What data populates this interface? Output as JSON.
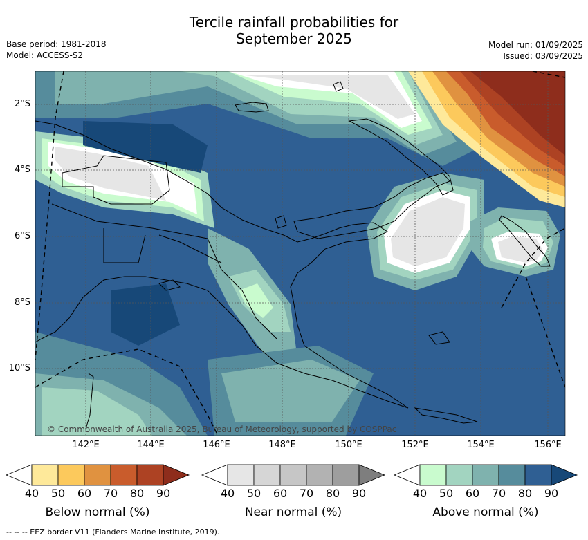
{
  "header": {
    "title_line1": "Tercile rainfall probabilities for",
    "title_line2": "September 2025",
    "base_period": "Base period: 1981-2018",
    "model": "Model: ACCESS-S2",
    "model_run": "Model run: 01/09/2025",
    "issued": "Issued: 03/09/2025"
  },
  "map": {
    "lat_labels": [
      "2°S",
      "4°S",
      "6°S",
      "8°S",
      "10°S"
    ],
    "lon_labels": [
      "142°E",
      "144°E",
      "146°E",
      "148°E",
      "150°E",
      "152°E",
      "154°E",
      "156°E"
    ],
    "copyright": "© Commonwealth of Australia 2025, Bureau of Meteorology, supported by COSPPac",
    "colors": {
      "land_outline": "#000000",
      "gridline": "#555555"
    }
  },
  "colorbars": [
    {
      "title": "Below normal (%)",
      "ticks": [
        "40",
        "50",
        "60",
        "70",
        "80",
        "90"
      ],
      "colors": [
        "#ffffff",
        "#fee99a",
        "#fcc95c",
        "#e09240",
        "#c95c2c",
        "#ad4223",
        "#8e2d1c"
      ]
    },
    {
      "title": "Near normal (%)",
      "ticks": [
        "40",
        "50",
        "60",
        "70",
        "80",
        "90"
      ],
      "colors": [
        "#ffffff",
        "#e6e6e6",
        "#d6d6d6",
        "#c6c6c6",
        "#b2b2b2",
        "#9e9e9e",
        "#7e7e7e"
      ]
    },
    {
      "title": "Above normal (%)",
      "ticks": [
        "40",
        "50",
        "60",
        "70",
        "80",
        "90"
      ],
      "colors": [
        "#ffffff",
        "#c9fbce",
        "#a2d4c0",
        "#7fb2ae",
        "#568c9c",
        "#2f5f93",
        "#174878"
      ]
    }
  ],
  "footer": "--  --  -- EEZ border V11 (Flanders Marine Institute, 2019)."
}
